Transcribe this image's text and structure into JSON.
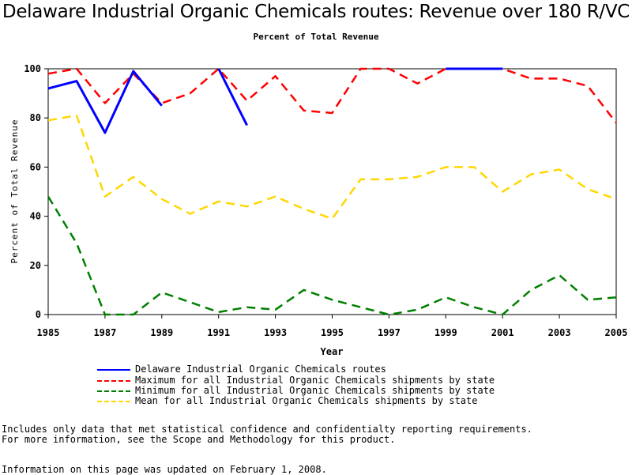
{
  "chart_data": {
    "type": "line",
    "title": "Delaware Industrial Organic Chemicals routes: Revenue over 180 R/VC",
    "subtitle": "Percent of Total Revenue",
    "xlabel": "Year",
    "ylabel": "Percent of Total Revenue",
    "xlim": [
      1985,
      2005
    ],
    "ylim": [
      0,
      100
    ],
    "x_ticks": [
      "1985",
      "1987",
      "1989",
      "1991",
      "1993",
      "1995",
      "1997",
      "1999",
      "2001",
      "2003",
      "2005"
    ],
    "y_ticks": [
      "0",
      "20",
      "40",
      "60",
      "80",
      "100"
    ],
    "grid": false,
    "legend_position": "bottom",
    "series": [
      {
        "name": "Delaware Industrial Organic Chemicals routes",
        "color": "#0000ff",
        "style": "solid",
        "segments": [
          {
            "x": [
              1985,
              1986,
              1987,
              1988,
              1989
            ],
            "y": [
              92,
              95,
              74,
              99,
              85
            ]
          },
          {
            "x": [
              1991,
              1992
            ],
            "y": [
              100,
              77
            ]
          },
          {
            "x": [
              1999,
              2000,
              2001
            ],
            "y": [
              100,
              100,
              100
            ]
          }
        ]
      },
      {
        "name": "Maximum for all Industrial Organic Chemicals shipments by state",
        "color": "#ff0000",
        "style": "dashed",
        "x": [
          1985,
          1986,
          1987,
          1988,
          1989,
          1990,
          1991,
          1992,
          1993,
          1994,
          1995,
          1996,
          1997,
          1998,
          1999,
          2000,
          2001,
          2002,
          2003,
          2004,
          2005
        ],
        "y": [
          98,
          100,
          86,
          98,
          86,
          90,
          100,
          87,
          97,
          83,
          82,
          100,
          100,
          94,
          100,
          100,
          100,
          96,
          96,
          93,
          78
        ]
      },
      {
        "name": "Minimum for all Industrial Organic Chemicals shipments by state",
        "color": "#008000",
        "style": "dashed",
        "x": [
          1985,
          1986,
          1987,
          1988,
          1989,
          1990,
          1991,
          1992,
          1993,
          1994,
          1995,
          1996,
          1997,
          1998,
          1999,
          2000,
          2001,
          2002,
          2003,
          2004,
          2005
        ],
        "y": [
          48,
          29,
          0,
          0,
          9,
          5,
          1,
          3,
          2,
          10,
          6,
          3,
          0,
          2,
          7,
          3,
          0,
          10,
          16,
          6,
          7
        ]
      },
      {
        "name": "Mean for all Industrial Organic Chemicals shipments by state",
        "color": "#ffd700",
        "style": "dashed",
        "x": [
          1985,
          1986,
          1987,
          1988,
          1989,
          1990,
          1991,
          1992,
          1993,
          1994,
          1995,
          1996,
          1997,
          1998,
          1999,
          2000,
          2001,
          2002,
          2003,
          2004,
          2005
        ],
        "y": [
          79,
          81,
          48,
          56,
          47,
          41,
          46,
          44,
          48,
          43,
          39,
          55,
          55,
          56,
          60,
          60,
          50,
          57,
          59,
          51,
          47
        ]
      }
    ]
  },
  "notes": {
    "line1": "Includes only data that met statistical confidence and confidentialty reporting requirements.",
    "line2": "For more information, see the Scope and Methodology for this product.",
    "updated": "Information on this page was updated on February 1, 2008."
  }
}
